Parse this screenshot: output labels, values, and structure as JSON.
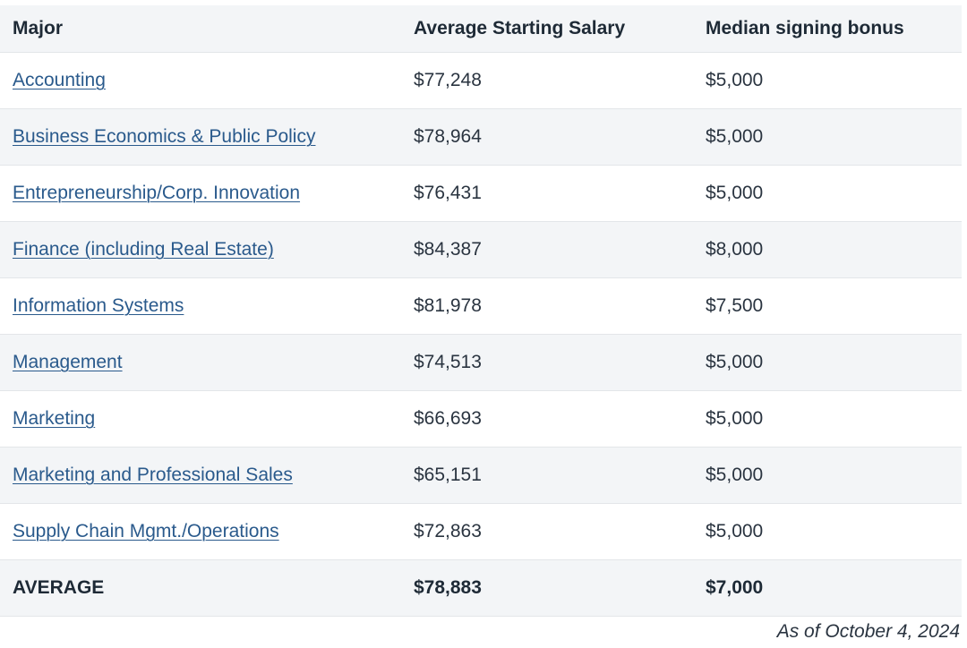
{
  "table": {
    "headers": [
      "Major",
      "Average Starting Salary",
      "Median signing bonus"
    ],
    "rows": [
      {
        "major": "Accounting",
        "salary": "$77,248",
        "bonus": "$5,000"
      },
      {
        "major": "Business Economics & Public Policy",
        "salary": "$78,964",
        "bonus": "$5,000"
      },
      {
        "major": "Entrepreneurship/Corp. Innovation",
        "salary": "$76,431",
        "bonus": "$5,000"
      },
      {
        "major": "Finance (including Real Estate)",
        "salary": "$84,387",
        "bonus": "$8,000"
      },
      {
        "major": "Information Systems",
        "salary": "$81,978",
        "bonus": "$7,500"
      },
      {
        "major": "Management",
        "salary": "$74,513",
        "bonus": "$5,000"
      },
      {
        "major": "Marketing",
        "salary": "$66,693",
        "bonus": "$5,000"
      },
      {
        "major": "Marketing and Professional Sales",
        "salary": "$65,151",
        "bonus": "$5,000"
      },
      {
        "major": "Supply Chain Mgmt./Operations",
        "salary": "$72,863",
        "bonus": "$5,000"
      }
    ],
    "average": {
      "label": "AVERAGE",
      "salary": "$78,883",
      "bonus": "$7,000"
    }
  },
  "footnote": "As of October 4, 2024",
  "colors": {
    "link": "#2a5a8c",
    "shaded_row": "#f3f5f7",
    "border": "#e3e6e9",
    "text": "#1e2a36"
  }
}
